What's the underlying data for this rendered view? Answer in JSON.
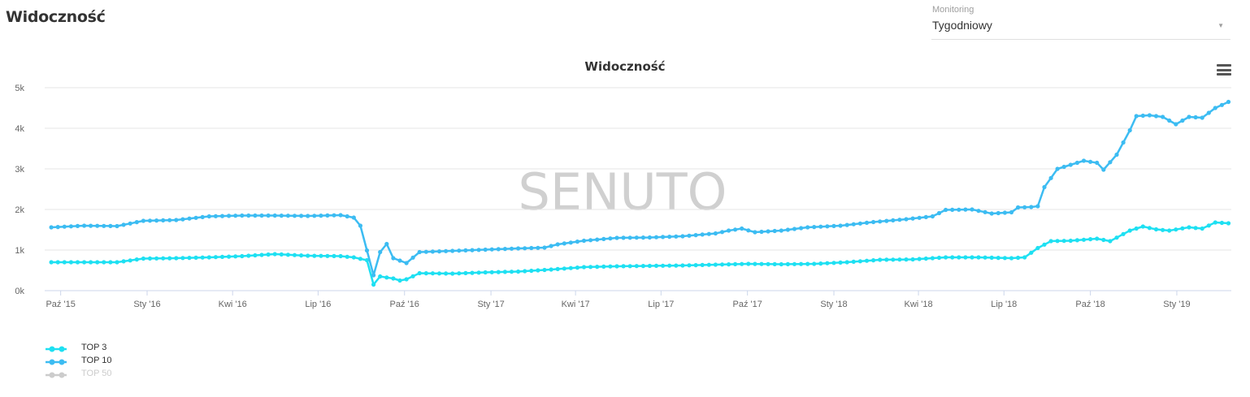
{
  "page_title": "Widoczność",
  "monitoring": {
    "label": "Monitoring",
    "value": "Tygodniowy"
  },
  "colors": {
    "top3": "#1ee0f2",
    "top10": "#3cbcf2",
    "top50": "#cccccc",
    "grid": "#e6e6e6",
    "watermark": "#d0d0d0"
  },
  "watermark": "SENUTO",
  "chart_data": {
    "type": "line",
    "title": "Widoczność",
    "x_tick_labels": [
      "Paź '15",
      "Sty '16",
      "Kwi '16",
      "Lip '16",
      "Paź '16",
      "Sty '17",
      "Kwi '17",
      "Lip '17",
      "Paź '17",
      "Sty '18",
      "Kwi '18",
      "Lip '18",
      "Paź '18",
      "Sty '19"
    ],
    "x_tick_dates": [
      "2015-10-01",
      "2016-01-01",
      "2016-04-01",
      "2016-07-01",
      "2016-10-01",
      "2017-01-01",
      "2017-04-01",
      "2017-07-01",
      "2017-10-01",
      "2018-01-01",
      "2018-04-01",
      "2018-07-01",
      "2018-10-01",
      "2019-01-01"
    ],
    "y_tick_labels": [
      "0k",
      "1k",
      "2k",
      "3k",
      "4k",
      "5k"
    ],
    "ylim": [
      0,
      5000
    ],
    "xlim": [
      "2015-09-14",
      "2019-02-28"
    ],
    "legend_position": "bottom-left",
    "grid": true,
    "series": [
      {
        "name": "TOP 3",
        "visible": true,
        "points": [
          [
            "2015-09-21",
            700
          ],
          [
            "2015-10-26",
            700
          ],
          [
            "2015-11-30",
            700
          ],
          [
            "2015-12-28",
            790
          ],
          [
            "2016-02-01",
            800
          ],
          [
            "2016-03-07",
            820
          ],
          [
            "2016-04-11",
            850
          ],
          [
            "2016-05-16",
            900
          ],
          [
            "2016-06-20",
            860
          ],
          [
            "2016-07-25",
            850
          ],
          [
            "2016-08-08",
            820
          ],
          [
            "2016-08-22",
            750
          ],
          [
            "2016-08-29",
            150
          ],
          [
            "2016-09-05",
            350
          ],
          [
            "2016-09-19",
            300
          ],
          [
            "2016-09-26",
            250
          ],
          [
            "2016-10-03",
            280
          ],
          [
            "2016-10-17",
            430
          ],
          [
            "2016-11-21",
            420
          ],
          [
            "2016-12-26",
            450
          ],
          [
            "2017-01-30",
            470
          ],
          [
            "2017-03-06",
            520
          ],
          [
            "2017-04-10",
            580
          ],
          [
            "2017-05-15",
            600
          ],
          [
            "2017-06-19",
            610
          ],
          [
            "2017-07-24",
            620
          ],
          [
            "2017-08-28",
            640
          ],
          [
            "2017-10-02",
            660
          ],
          [
            "2017-11-06",
            650
          ],
          [
            "2017-12-11",
            660
          ],
          [
            "2018-01-15",
            700
          ],
          [
            "2018-02-19",
            760
          ],
          [
            "2018-03-26",
            770
          ],
          [
            "2018-04-30",
            820
          ],
          [
            "2018-06-04",
            820
          ],
          [
            "2018-07-09",
            800
          ],
          [
            "2018-07-23",
            820
          ],
          [
            "2018-08-06",
            1050
          ],
          [
            "2018-08-20",
            1220
          ],
          [
            "2018-09-10",
            1230
          ],
          [
            "2018-10-08",
            1280
          ],
          [
            "2018-10-22",
            1220
          ],
          [
            "2018-11-12",
            1480
          ],
          [
            "2018-11-26",
            1580
          ],
          [
            "2018-12-10",
            1510
          ],
          [
            "2018-12-24",
            1480
          ],
          [
            "2019-01-14",
            1560
          ],
          [
            "2019-01-28",
            1530
          ],
          [
            "2019-02-11",
            1680
          ],
          [
            "2019-02-25",
            1660
          ]
        ]
      },
      {
        "name": "TOP 10",
        "visible": true,
        "points": [
          [
            "2015-09-21",
            1560
          ],
          [
            "2015-10-26",
            1600
          ],
          [
            "2015-11-30",
            1590
          ],
          [
            "2015-12-28",
            1720
          ],
          [
            "2016-02-01",
            1740
          ],
          [
            "2016-03-07",
            1830
          ],
          [
            "2016-04-11",
            1850
          ],
          [
            "2016-05-16",
            1850
          ],
          [
            "2016-06-20",
            1840
          ],
          [
            "2016-07-25",
            1860
          ],
          [
            "2016-08-08",
            1800
          ],
          [
            "2016-08-15",
            1600
          ],
          [
            "2016-08-29",
            380
          ],
          [
            "2016-09-05",
            950
          ],
          [
            "2016-09-12",
            1150
          ],
          [
            "2016-09-19",
            800
          ],
          [
            "2016-10-03",
            680
          ],
          [
            "2016-10-17",
            950
          ],
          [
            "2016-11-21",
            980
          ],
          [
            "2016-12-26",
            1010
          ],
          [
            "2017-01-30",
            1040
          ],
          [
            "2017-02-27",
            1060
          ],
          [
            "2017-03-13",
            1140
          ],
          [
            "2017-04-10",
            1230
          ],
          [
            "2017-05-15",
            1300
          ],
          [
            "2017-06-19",
            1310
          ],
          [
            "2017-07-24",
            1340
          ],
          [
            "2017-08-28",
            1410
          ],
          [
            "2017-09-11",
            1480
          ],
          [
            "2017-09-25",
            1530
          ],
          [
            "2017-10-09",
            1440
          ],
          [
            "2017-11-06",
            1480
          ],
          [
            "2017-12-04",
            1560
          ],
          [
            "2018-01-08",
            1600
          ],
          [
            "2018-02-12",
            1690
          ],
          [
            "2018-03-19",
            1760
          ],
          [
            "2018-04-16",
            1830
          ],
          [
            "2018-04-30",
            1990
          ],
          [
            "2018-05-28",
            2000
          ],
          [
            "2018-06-18",
            1900
          ],
          [
            "2018-07-09",
            1930
          ],
          [
            "2018-07-16",
            2050
          ],
          [
            "2018-07-30",
            2060
          ],
          [
            "2018-08-06",
            2080
          ],
          [
            "2018-08-13",
            2550
          ],
          [
            "2018-08-27",
            3000
          ],
          [
            "2018-09-10",
            3100
          ],
          [
            "2018-09-24",
            3200
          ],
          [
            "2018-10-08",
            3150
          ],
          [
            "2018-10-15",
            2980
          ],
          [
            "2018-10-29",
            3350
          ],
          [
            "2018-11-12",
            3950
          ],
          [
            "2018-11-19",
            4300
          ],
          [
            "2018-12-03",
            4320
          ],
          [
            "2018-12-17",
            4280
          ],
          [
            "2018-12-31",
            4100
          ],
          [
            "2019-01-14",
            4280
          ],
          [
            "2019-01-28",
            4260
          ],
          [
            "2019-02-11",
            4500
          ],
          [
            "2019-02-25",
            4650
          ]
        ]
      },
      {
        "name": "TOP 50",
        "visible": false,
        "points": []
      }
    ]
  }
}
